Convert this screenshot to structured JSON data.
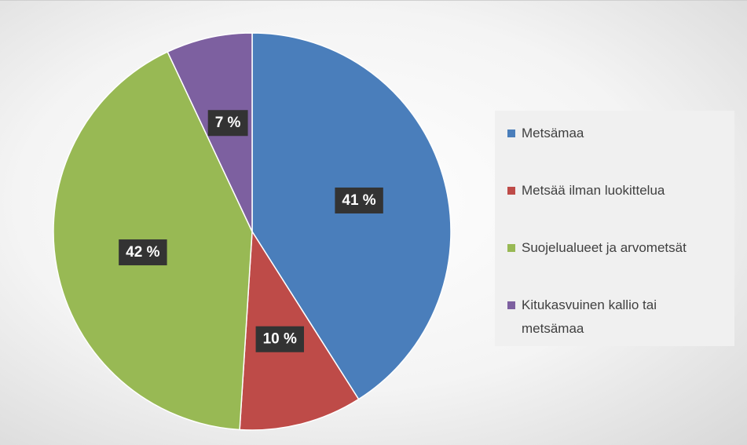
{
  "chart_data": {
    "type": "pie",
    "categories": [
      "Metsämaa",
      "Metsää ilman luokittelua",
      "Suojelualueet ja arvometsät",
      "Kitukasvuinen kallio tai metsämaa"
    ],
    "values": [
      41,
      10,
      42,
      7
    ],
    "value_labels": [
      "41 %",
      "10 %",
      "42 %",
      "7 %"
    ],
    "colors": [
      "#4a7ebb",
      "#be4b48",
      "#98b954",
      "#7d60a0"
    ],
    "legend": "right"
  }
}
